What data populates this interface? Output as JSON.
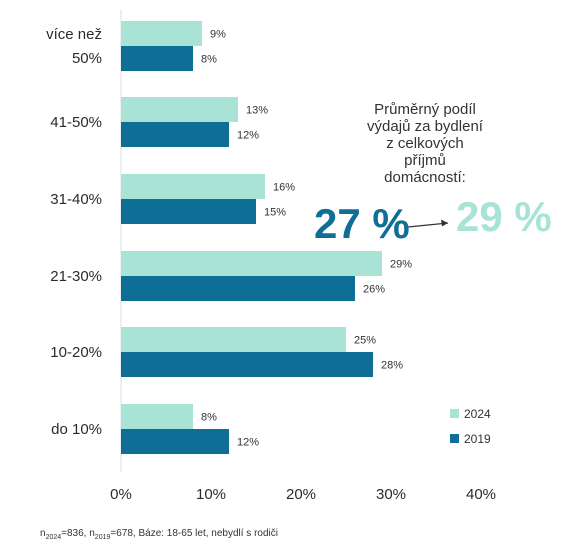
{
  "chart_data": {
    "type": "bar",
    "orientation": "horizontal",
    "categories": [
      [
        "více než",
        "50%"
      ],
      [
        "41-50%"
      ],
      [
        "31-40%"
      ],
      [
        "21-30%"
      ],
      [
        "10-20%"
      ],
      [
        "do 10%"
      ]
    ],
    "series": [
      {
        "name": "2024",
        "color": "#a8e3d6",
        "values": [
          9,
          13,
          16,
          29,
          25,
          8
        ]
      },
      {
        "name": "2019",
        "color": "#0e6e96",
        "values": [
          8,
          12,
          15,
          26,
          28,
          12
        ]
      }
    ],
    "value_suffix": "%",
    "xlim": [
      0,
      40
    ],
    "xticks": [
      {
        "value": 0,
        "label": "0%"
      },
      {
        "value": 10,
        "label": "10%"
      },
      {
        "value": 20,
        "label": "20%"
      },
      {
        "value": 30,
        "label": "30%"
      },
      {
        "value": 40,
        "label": "40%"
      }
    ],
    "grid": false,
    "legend": {
      "position": "bottom-right",
      "entries": [
        "2024",
        "2019"
      ]
    }
  },
  "annotation": {
    "lines": [
      "Průměrný podíl",
      "výdajů za bydlení",
      "z celkových",
      "příjmů",
      "domácností:"
    ],
    "from_value": "27 %",
    "to_value": "29 %"
  },
  "footnote": {
    "n_label": "n",
    "sub_2024": "2024",
    "eq_2024": "=836, n",
    "sub_2019": "2019",
    "rest": "=678, Báze: 18-65 let, nebydlí s rodiči"
  }
}
